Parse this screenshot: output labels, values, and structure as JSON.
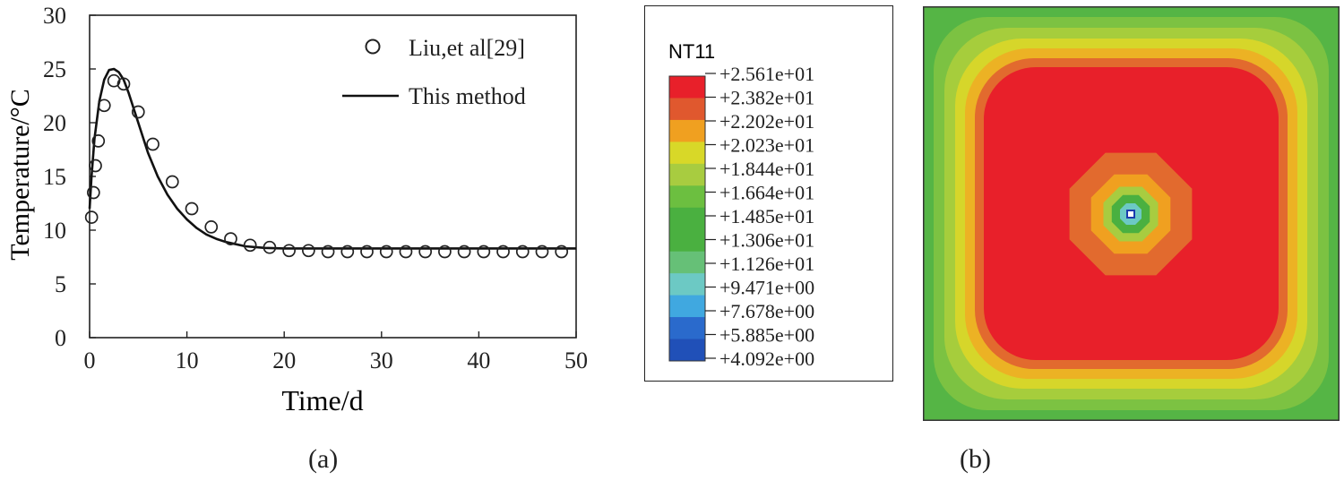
{
  "figure": {
    "caption_a": "(a)",
    "caption_b": "(b)"
  },
  "chart_data": [
    {
      "type": "line",
      "title": "",
      "xlabel": "Time/d",
      "ylabel": "Temperature/°C",
      "xlim": [
        0,
        50
      ],
      "ylim": [
        0,
        30
      ],
      "xticks": [
        "0",
        "10",
        "20",
        "30",
        "40",
        "50"
      ],
      "yticks": [
        "0",
        "5",
        "10",
        "15",
        "20",
        "25",
        "30"
      ],
      "grid": false,
      "legend_position": "top-right",
      "series": [
        {
          "name": "Liu,et al[29]",
          "style": "open-circle-markers",
          "x": [
            0.2,
            0.4,
            0.6,
            0.9,
            1.5,
            2.5,
            3.5,
            5.0,
            6.5,
            8.5,
            10.5,
            12.5,
            14.5,
            16.5,
            18.5,
            20.5,
            22.5,
            24.5,
            26.5,
            28.5,
            30.5,
            32.5,
            34.5,
            36.5,
            38.5,
            40.5,
            42.5,
            44.5,
            46.5,
            48.5
          ],
          "y": [
            11.2,
            13.5,
            16.0,
            18.3,
            21.6,
            23.9,
            23.6,
            21.0,
            18.0,
            14.5,
            12.0,
            10.3,
            9.2,
            8.6,
            8.4,
            8.1,
            8.1,
            8.0,
            8.0,
            8.0,
            8.0,
            8.0,
            8.0,
            8.0,
            8.0,
            8.0,
            8.0,
            8.0,
            8.0,
            8.0
          ]
        },
        {
          "name": "This method",
          "style": "solid-line",
          "x": [
            0.0,
            0.2,
            0.5,
            1.0,
            1.5,
            2.0,
            2.5,
            3.0,
            3.5,
            4.0,
            5.0,
            6.0,
            7.0,
            8.0,
            9.0,
            10.0,
            11.0,
            12.0,
            13.0,
            14.0,
            16.0,
            18.0,
            20.0,
            25.0,
            30.0,
            40.0,
            50.0
          ],
          "y": [
            12.0,
            15.0,
            18.5,
            22.0,
            24.0,
            24.9,
            25.0,
            24.7,
            24.0,
            22.8,
            20.0,
            17.2,
            15.0,
            13.3,
            12.0,
            11.0,
            10.2,
            9.6,
            9.2,
            8.9,
            8.5,
            8.35,
            8.3,
            8.3,
            8.3,
            8.3,
            8.3
          ]
        }
      ]
    },
    {
      "type": "heatmap",
      "title": "NT11",
      "legend_position": "left",
      "contour_levels": [
        "+2.561e+01",
        "+2.382e+01",
        "+2.202e+01",
        "+2.023e+01",
        "+1.844e+01",
        "+1.664e+01",
        "+1.485e+01",
        "+1.306e+01",
        "+1.126e+01",
        "+9.471e+00",
        "+7.678e+00",
        "+5.885e+00",
        "+4.092e+00"
      ],
      "band_colors": [
        "#e8202a",
        "#e0582e",
        "#f0a020",
        "#d8d828",
        "#a8cc40",
        "#6cbf40",
        "#4ab040",
        "#4ab040",
        "#66c077",
        "#6cc9c4",
        "#40a8e0",
        "#2a6acc",
        "#2050b8"
      ],
      "field": {
        "max_label": "+2.561e+01",
        "min_label": "+4.092e+00",
        "rings_outer_to_inner": [
          "#55b545",
          "#7cc242",
          "#a6cd3c",
          "#d6d62a",
          "#ecb224",
          "#e26a2e",
          "#dc4a2c",
          "#e8202a",
          "#e8202a",
          "#e26a2e",
          "#f0a020",
          "#a8cc40",
          "#4ab040",
          "#6cc9c4",
          "#ffffff"
        ]
      }
    }
  ]
}
